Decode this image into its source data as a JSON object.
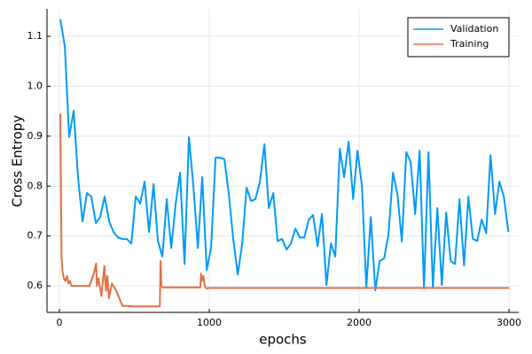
{
  "chart_data": {
    "type": "line",
    "x_label": "epochs",
    "y_label": "Cross Entropy",
    "xlim": [
      -83,
      3065
    ],
    "ylim": [
      0.547,
      1.155
    ],
    "xticks": [
      0,
      1000,
      2000,
      3000
    ],
    "yticks": [
      0.6,
      0.7,
      0.8,
      0.9,
      {
        "value": 1,
        "label": "1.0"
      },
      1.1
    ],
    "grid": true,
    "legend": "top-right",
    "series": [
      {
        "name": "Validation",
        "color": "#009af9",
        "x": [
          6,
          36,
          65,
          95,
          124,
          154,
          184,
          213,
          243,
          272,
          302,
          332,
          361,
          391,
          420,
          450,
          480,
          509,
          539,
          568,
          598,
          628,
          657,
          687,
          716,
          746,
          776,
          805,
          835,
          864,
          894,
          924,
          953,
          983,
          1012,
          1042,
          1072,
          1101,
          1131,
          1160,
          1190,
          1220,
          1249,
          1279,
          1308,
          1338,
          1368,
          1397,
          1427,
          1456,
          1486,
          1516,
          1545,
          1575,
          1604,
          1634,
          1664,
          1693,
          1723,
          1752,
          1782,
          1812,
          1841,
          1871,
          1900,
          1930,
          1960,
          1989,
          2019,
          2048,
          2078,
          2108,
          2137,
          2167,
          2196,
          2226,
          2256,
          2285,
          2315,
          2344,
          2374,
          2404,
          2433,
          2463,
          2492,
          2522,
          2552,
          2581,
          2611,
          2640,
          2670,
          2700,
          2729,
          2759,
          2788,
          2818,
          2848,
          2877,
          2907,
          2936,
          2966,
          2996
        ],
        "values": [
          1.134,
          1.08,
          0.898,
          0.951,
          0.818,
          0.729,
          0.786,
          0.779,
          0.726,
          0.738,
          0.779,
          0.729,
          0.708,
          0.697,
          0.694,
          0.694,
          0.685,
          0.779,
          0.765,
          0.809,
          0.708,
          0.804,
          0.69,
          0.659,
          0.774,
          0.676,
          0.765,
          0.827,
          0.644,
          0.898,
          0.8,
          0.676,
          0.818,
          0.632,
          0.676,
          0.857,
          0.857,
          0.854,
          0.783,
          0.694,
          0.623,
          0.685,
          0.797,
          0.77,
          0.774,
          0.809,
          0.884,
          0.756,
          0.786,
          0.69,
          0.694,
          0.673,
          0.685,
          0.715,
          0.697,
          0.697,
          0.733,
          0.742,
          0.68,
          0.744,
          0.602,
          0.685,
          0.659,
          0.875,
          0.818,
          0.889,
          0.774,
          0.871,
          0.8,
          0.596,
          0.738,
          0.591,
          0.65,
          0.655,
          0.703,
          0.827,
          0.783,
          0.689,
          0.868,
          0.848,
          0.744,
          0.871,
          0.595,
          0.868,
          0.596,
          0.756,
          0.602,
          0.747,
          0.65,
          0.644,
          0.774,
          0.641,
          0.779,
          0.694,
          0.69,
          0.733,
          0.706,
          0.862,
          0.744,
          0.809,
          0.779,
          0.708
        ]
      },
      {
        "name": "Training",
        "color": "#e26f46",
        "x": [
          6,
          10,
          14,
          20,
          30,
          40,
          50,
          60,
          70,
          80,
          100,
          150,
          200,
          230,
          245,
          250,
          260,
          280,
          300,
          310,
          320,
          330,
          350,
          380,
          400,
          420,
          440,
          500,
          600,
          670,
          675,
          680,
          690,
          800,
          940,
          945,
          950,
          960,
          970,
          980,
          1000,
          2000,
          3000
        ],
        "values": [
          0.945,
          0.8,
          0.66,
          0.63,
          0.615,
          0.61,
          0.62,
          0.605,
          0.61,
          0.6,
          0.6,
          0.6,
          0.6,
          0.625,
          0.645,
          0.6,
          0.615,
          0.58,
          0.64,
          0.59,
          0.62,
          0.575,
          0.605,
          0.59,
          0.575,
          0.56,
          0.56,
          0.559,
          0.559,
          0.559,
          0.65,
          0.6,
          0.597,
          0.597,
          0.597,
          0.625,
          0.61,
          0.62,
          0.6,
          0.595,
          0.596,
          0.596,
          0.596
        ]
      }
    ]
  }
}
